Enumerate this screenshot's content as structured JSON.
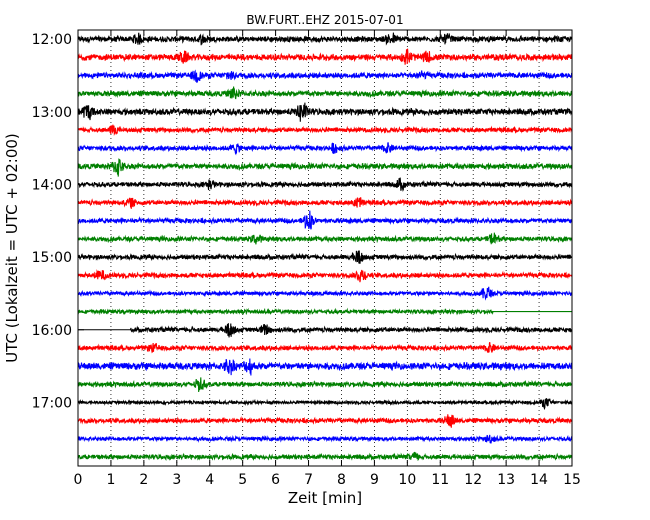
{
  "chart_data": {
    "type": "line",
    "title": "BW.FURT..EHZ 2015-07-01",
    "xlabel": "Zeit  [min]",
    "ylabel": "UTC (Lokalzeit = UTC + 02:00)",
    "xlim": [
      0,
      15
    ],
    "x_ticks": [
      0,
      1,
      2,
      3,
      4,
      5,
      6,
      7,
      8,
      9,
      10,
      11,
      12,
      13,
      14,
      15
    ],
    "y_tick_labels": [
      "12:00",
      "13:00",
      "14:00",
      "15:00",
      "16:00",
      "17:00"
    ],
    "grid": "vertical dotted",
    "series_colors": [
      "#000000",
      "#ff0000",
      "#0000ff",
      "#008000"
    ],
    "traces": [
      {
        "start": "12:00",
        "color": "#000000",
        "amplitude": 0.35,
        "events": [
          [
            1.8,
            0.6
          ],
          [
            3.8,
            0.5
          ],
          [
            9.5,
            0.7
          ],
          [
            11.2,
            0.5
          ]
        ]
      },
      {
        "start": "12:15",
        "color": "#ff0000",
        "amplitude": 0.4,
        "events": [
          [
            3.2,
            0.6
          ],
          [
            10.0,
            0.8
          ],
          [
            10.6,
            0.5
          ]
        ]
      },
      {
        "start": "12:30",
        "color": "#0000ff",
        "amplitude": 0.35,
        "events": [
          [
            3.6,
            0.7
          ],
          [
            4.6,
            0.5
          ],
          [
            10.4,
            0.4
          ]
        ]
      },
      {
        "start": "12:45",
        "color": "#008000",
        "amplitude": 0.35,
        "events": [
          [
            4.7,
            0.7
          ]
        ]
      },
      {
        "start": "13:00",
        "color": "#000000",
        "amplitude": 0.4,
        "events": [
          [
            0.3,
            0.9
          ],
          [
            6.8,
            1.3
          ]
        ]
      },
      {
        "start": "13:15",
        "color": "#ff0000",
        "amplitude": 0.3,
        "events": [
          [
            1.1,
            0.6
          ]
        ]
      },
      {
        "start": "13:30",
        "color": "#0000ff",
        "amplitude": 0.3,
        "events": [
          [
            4.8,
            0.5
          ],
          [
            7.8,
            0.5
          ],
          [
            9.4,
            0.5
          ]
        ]
      },
      {
        "start": "13:45",
        "color": "#008000",
        "amplitude": 0.35,
        "events": [
          [
            1.2,
            1.2
          ]
        ]
      },
      {
        "start": "14:00",
        "color": "#000000",
        "amplitude": 0.3,
        "events": [
          [
            4.0,
            0.5
          ],
          [
            9.8,
            0.6
          ]
        ]
      },
      {
        "start": "14:15",
        "color": "#ff0000",
        "amplitude": 0.3,
        "events": [
          [
            1.6,
            0.5
          ],
          [
            8.5,
            0.6
          ]
        ]
      },
      {
        "start": "14:30",
        "color": "#0000ff",
        "amplitude": 0.3,
        "events": [
          [
            7.0,
            1.2
          ]
        ]
      },
      {
        "start": "14:45",
        "color": "#008000",
        "amplitude": 0.3,
        "events": [
          [
            5.4,
            0.5
          ],
          [
            12.6,
            0.6
          ]
        ]
      },
      {
        "start": "15:00",
        "color": "#000000",
        "amplitude": 0.3,
        "events": [
          [
            8.5,
            1.0
          ]
        ]
      },
      {
        "start": "15:15",
        "color": "#ff0000",
        "amplitude": 0.3,
        "events": [
          [
            0.7,
            0.6
          ],
          [
            8.6,
            0.9
          ]
        ]
      },
      {
        "start": "15:30",
        "color": "#0000ff",
        "amplitude": 0.25,
        "events": [
          [
            12.4,
            0.9
          ]
        ]
      },
      {
        "start": "15:45",
        "color": "#008000",
        "amplitude": 0.25,
        "events": [],
        "flat_from": 12.6
      },
      {
        "start": "16:00",
        "color": "#000000",
        "amplitude": 0.3,
        "events": [
          [
            4.6,
            1.0
          ],
          [
            5.7,
            0.7
          ]
        ],
        "flat_until": 1.6
      },
      {
        "start": "16:15",
        "color": "#ff0000",
        "amplitude": 0.3,
        "events": [
          [
            2.3,
            0.5
          ],
          [
            12.5,
            0.5
          ]
        ]
      },
      {
        "start": "16:30",
        "color": "#0000ff",
        "amplitude": 0.45,
        "events": [
          [
            4.6,
            0.9
          ],
          [
            5.2,
            0.8
          ]
        ]
      },
      {
        "start": "16:45",
        "color": "#008000",
        "amplitude": 0.3,
        "events": [
          [
            3.7,
            0.7
          ]
        ]
      },
      {
        "start": "17:00",
        "color": "#000000",
        "amplitude": 0.2,
        "events": [
          [
            14.2,
            0.6
          ]
        ]
      },
      {
        "start": "17:15",
        "color": "#ff0000",
        "amplitude": 0.3,
        "events": [
          [
            11.3,
            0.8
          ]
        ]
      },
      {
        "start": "17:30",
        "color": "#0000ff",
        "amplitude": 0.25,
        "events": [
          [
            12.5,
            0.5
          ]
        ]
      },
      {
        "start": "17:45",
        "color": "#008000",
        "amplitude": 0.3,
        "events": [
          [
            10.2,
            0.5
          ]
        ]
      }
    ]
  }
}
